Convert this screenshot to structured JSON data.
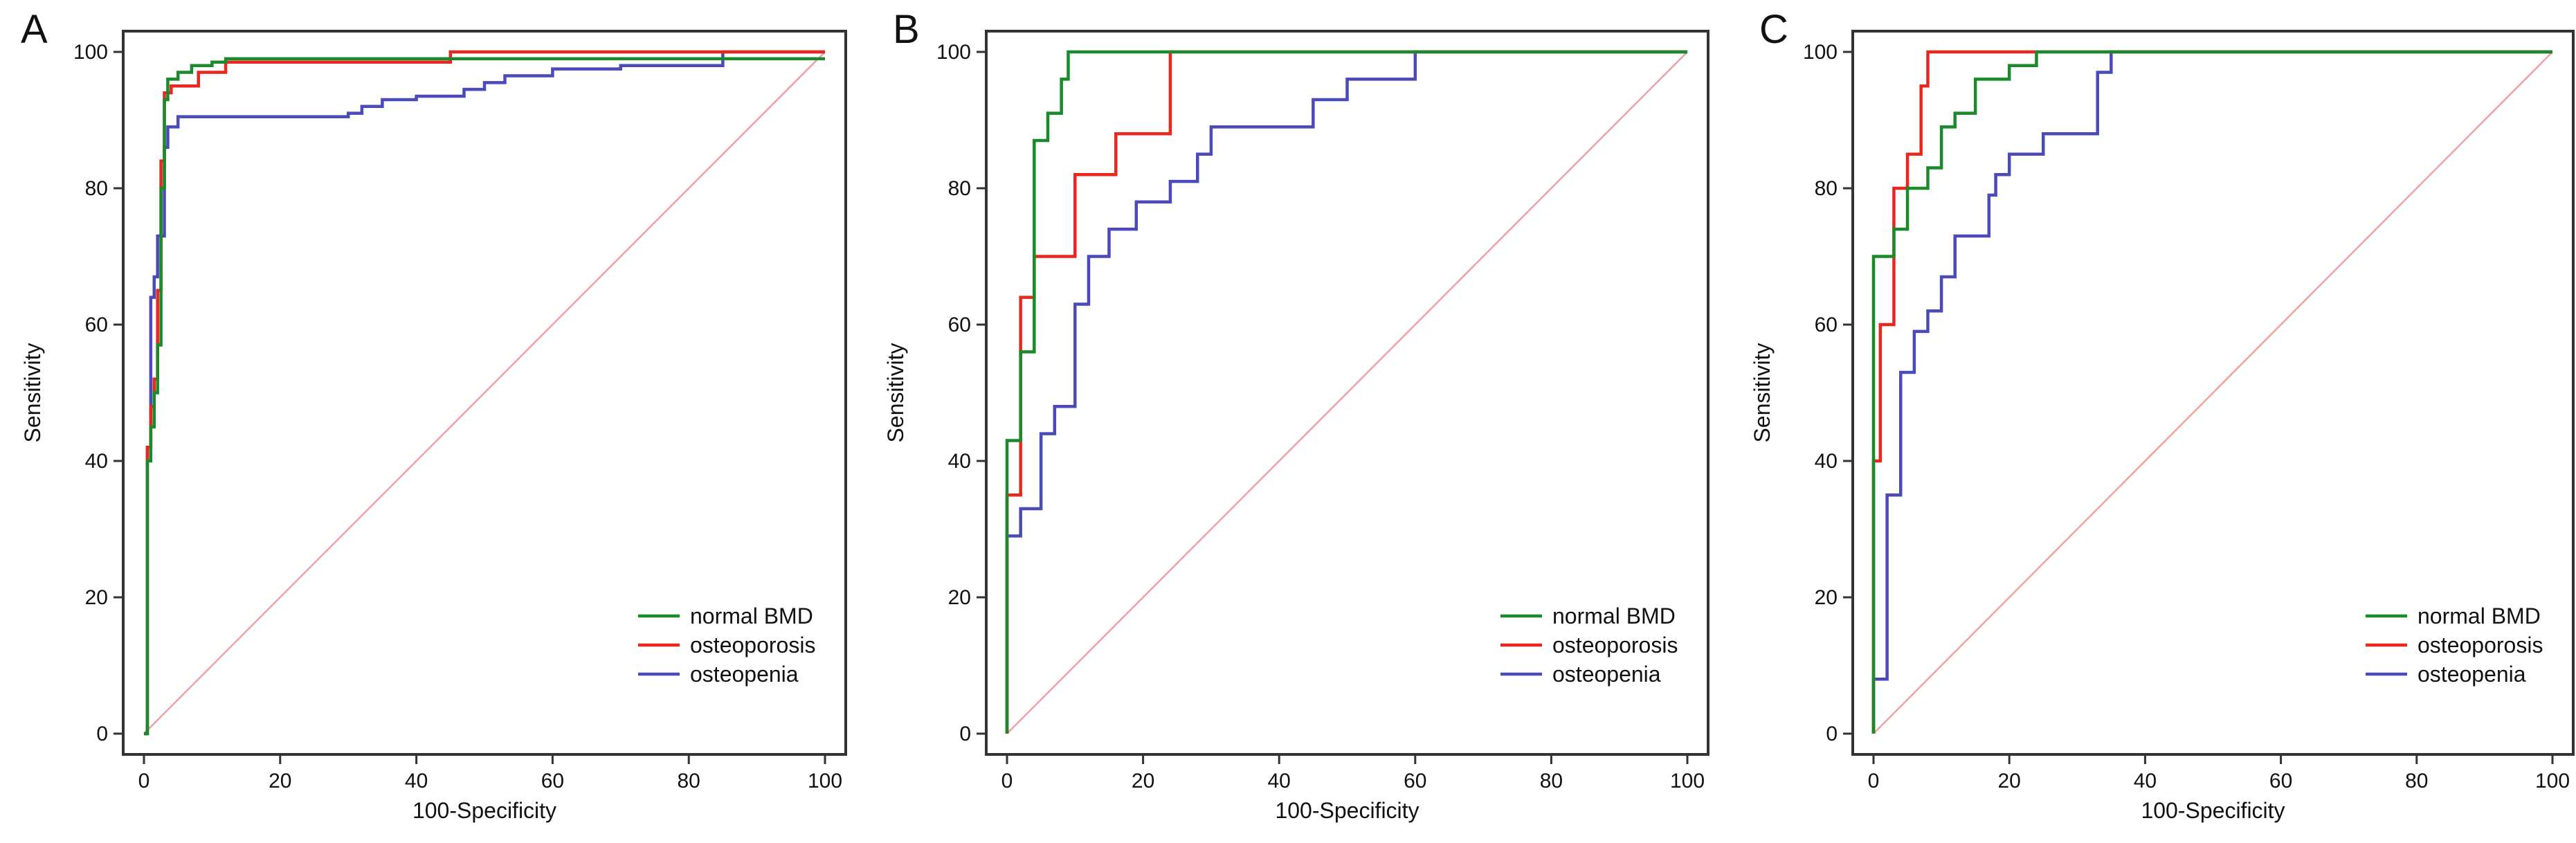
{
  "colors": {
    "normal_bmd": "#1a8a2a",
    "osteoporosis": "#e8271f",
    "osteopenia": "#4a4ab8",
    "diagonal": "#f2a0a0",
    "frame": "#333333"
  },
  "chart_data": [
    {
      "type": "line",
      "panel_label": "A",
      "title": "",
      "xlabel": "100-Specificity",
      "ylabel": "Sensitivity",
      "xlim": [
        0,
        100
      ],
      "ylim": [
        0,
        100
      ],
      "xticks": [
        0,
        20,
        40,
        60,
        80,
        100
      ],
      "yticks": [
        0,
        20,
        40,
        60,
        80,
        100
      ],
      "legend_position": "bottom-right",
      "diagonal": true,
      "series": [
        {
          "name": "normal BMD",
          "color_key": "normal_bmd",
          "x": [
            0,
            0.5,
            0.5,
            1,
            1,
            1.5,
            1.5,
            2,
            2,
            2.5,
            2.5,
            3,
            3,
            3.5,
            3.5,
            5,
            5,
            7,
            7,
            10,
            10,
            12,
            12,
            45,
            45,
            100
          ],
          "y": [
            0,
            0,
            40,
            40,
            45,
            45,
            50,
            50,
            57,
            57,
            80,
            80,
            93,
            93,
            96,
            96,
            97,
            97,
            98,
            98,
            98.5,
            98.5,
            99,
            99,
            99,
            99
          ]
        },
        {
          "name": "osteoporosis",
          "color_key": "osteoporosis",
          "x": [
            0,
            0.5,
            0.5,
            1,
            1,
            1.5,
            1.5,
            2,
            2,
            2.5,
            2.5,
            3,
            3,
            4,
            4,
            8,
            8,
            12,
            12,
            45,
            45,
            100
          ],
          "y": [
            0,
            0,
            42,
            42,
            48,
            48,
            52,
            52,
            65,
            65,
            84,
            84,
            94,
            94,
            95,
            95,
            97,
            97,
            98.5,
            98.5,
            100,
            100
          ]
        },
        {
          "name": "osteopenia",
          "color_key": "osteopenia",
          "x": [
            0,
            0.5,
            0.5,
            1,
            1,
            1.5,
            1.5,
            2,
            2,
            3,
            3,
            3.5,
            3.5,
            5,
            5,
            30,
            30,
            32,
            32,
            35,
            35,
            40,
            40,
            47,
            47,
            50,
            50,
            53,
            53,
            60,
            60,
            70,
            70,
            85,
            85,
            100
          ],
          "y": [
            0,
            0,
            42,
            42,
            64,
            64,
            67,
            67,
            73,
            73,
            86,
            86,
            89,
            89,
            90.5,
            90.5,
            91,
            91,
            92,
            92,
            93,
            93,
            93.5,
            93.5,
            94.5,
            94.5,
            95.5,
            95.5,
            96.5,
            96.5,
            97.5,
            97.5,
            98,
            98,
            100,
            100
          ]
        }
      ]
    },
    {
      "type": "line",
      "panel_label": "B",
      "title": "",
      "xlabel": "100-Specificity",
      "ylabel": "Sensitivity",
      "xlim": [
        0,
        100
      ],
      "ylim": [
        0,
        100
      ],
      "xticks": [
        0,
        20,
        40,
        60,
        80,
        100
      ],
      "yticks": [
        0,
        20,
        40,
        60,
        80,
        100
      ],
      "legend_position": "bottom-right",
      "diagonal": true,
      "series": [
        {
          "name": "normal BMD",
          "color_key": "normal_bmd",
          "x": [
            0,
            0,
            1,
            1,
            2,
            2,
            4,
            4,
            6,
            6,
            8,
            8,
            9,
            9,
            100
          ],
          "y": [
            0,
            43,
            43,
            43,
            43,
            56,
            56,
            87,
            87,
            91,
            91,
            96,
            96,
            100,
            100
          ]
        },
        {
          "name": "osteoporosis",
          "color_key": "osteoporosis",
          "x": [
            0,
            0,
            1,
            1,
            2,
            2,
            4,
            4,
            10,
            10,
            16,
            16,
            24,
            24,
            100
          ],
          "y": [
            0,
            35,
            35,
            35,
            35,
            64,
            64,
            70,
            70,
            82,
            82,
            88,
            88,
            100,
            100
          ]
        },
        {
          "name": "osteopenia",
          "color_key": "osteopenia",
          "x": [
            0,
            0,
            2,
            2,
            5,
            5,
            7,
            7,
            8,
            8,
            10,
            10,
            12,
            12,
            15,
            15,
            19,
            19,
            24,
            24,
            26,
            26,
            28,
            28,
            30,
            30,
            45,
            45,
            50,
            50,
            60,
            60,
            100
          ],
          "y": [
            0,
            29,
            29,
            33,
            33,
            44,
            44,
            48,
            48,
            48,
            48,
            63,
            63,
            70,
            70,
            74,
            74,
            78,
            78,
            81,
            81,
            81,
            81,
            85,
            85,
            89,
            89,
            93,
            93,
            96,
            96,
            100,
            100
          ]
        }
      ]
    },
    {
      "type": "line",
      "panel_label": "C",
      "title": "",
      "xlabel": "100-Specificity",
      "ylabel": "Sensitivity",
      "xlim": [
        0,
        100
      ],
      "ylim": [
        0,
        100
      ],
      "xticks": [
        0,
        20,
        40,
        60,
        80,
        100
      ],
      "yticks": [
        0,
        20,
        40,
        60,
        80,
        100
      ],
      "legend_position": "bottom-right",
      "diagonal": true,
      "series": [
        {
          "name": "normal BMD",
          "color_key": "normal_bmd",
          "x": [
            0,
            0,
            1,
            1,
            3,
            3,
            5,
            5,
            7,
            7,
            8,
            8,
            10,
            10,
            12,
            12,
            15,
            15,
            20,
            20,
            24,
            24,
            100
          ],
          "y": [
            0,
            70,
            70,
            70,
            70,
            74,
            74,
            80,
            80,
            80,
            80,
            83,
            83,
            89,
            89,
            91,
            91,
            96,
            96,
            98,
            98,
            100,
            100
          ]
        },
        {
          "name": "osteoporosis",
          "color_key": "osteoporosis",
          "x": [
            0,
            0,
            1,
            1,
            2,
            2,
            3,
            3,
            5,
            5,
            6,
            6,
            7,
            7,
            8,
            8,
            100
          ],
          "y": [
            0,
            40,
            40,
            60,
            60,
            60,
            60,
            80,
            80,
            85,
            85,
            85,
            85,
            95,
            95,
            100,
            100
          ]
        },
        {
          "name": "osteopenia",
          "color_key": "osteopenia",
          "x": [
            0,
            0,
            1,
            1,
            2,
            2,
            4,
            4,
            6,
            6,
            8,
            8,
            10,
            10,
            12,
            12,
            14,
            14,
            17,
            17,
            18,
            18,
            20,
            20,
            25,
            25,
            33,
            33,
            35,
            35,
            100
          ],
          "y": [
            0,
            8,
            8,
            8,
            8,
            35,
            35,
            53,
            53,
            59,
            59,
            62,
            62,
            67,
            67,
            73,
            73,
            73,
            73,
            79,
            79,
            82,
            82,
            85,
            85,
            88,
            88,
            97,
            97,
            100,
            100
          ]
        }
      ]
    }
  ]
}
